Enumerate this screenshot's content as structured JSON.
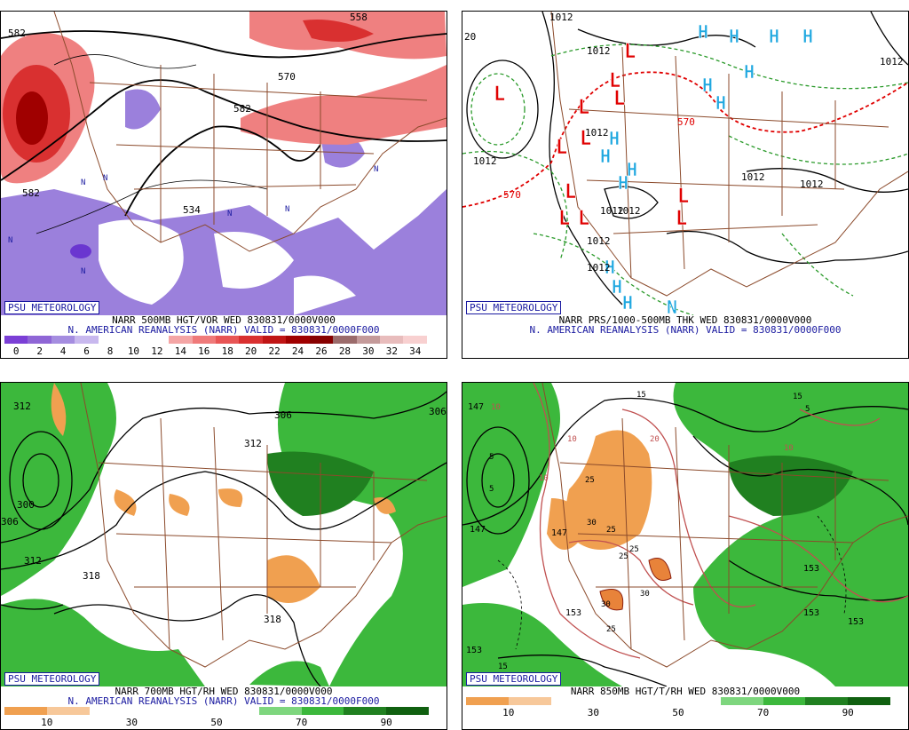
{
  "panels": [
    {
      "id": "p1",
      "badge": "PSU METEOROLOGY",
      "title": "NARR 500MB HGT/VOR WED 830831/0000V000",
      "subtitle": "N. AMERICAN REANALYSIS (NARR) VALID = 830831/0000F000",
      "labels": [
        "582",
        "570",
        "582",
        "582",
        "558",
        "534"
      ],
      "colorbar": {
        "colors": [
          "#7b3fd6",
          "#8f66d6",
          "#a58de0",
          "#c8b8ee",
          "#ffffff",
          "#ffffff",
          "#ffffff",
          "#f4a5a5",
          "#ef7a7a",
          "#e85555",
          "#d93030",
          "#c01515",
          "#a00000",
          "#870000",
          "#9b6b6b",
          "#c49a9a",
          "#e8bcbc",
          "#f8d0d0"
        ],
        "ticks": [
          "0",
          "2",
          "4",
          "6",
          "8",
          "10",
          "12",
          "14",
          "16",
          "18",
          "20",
          "22",
          "24",
          "26",
          "28",
          "30",
          "32",
          "34"
        ]
      }
    },
    {
      "id": "p2",
      "badge": "PSU METEOROLOGY",
      "title": "NARR PRS/1000-500MB THK WED 830831/0000V000",
      "subtitle": "N. AMERICAN REANALYSIS (NARR) VALID = 830831/0000F000",
      "labels": [
        "1012",
        "1012",
        "1012",
        "1012",
        "1012",
        "1012",
        "1012",
        "1012",
        "1012",
        "1012",
        "570",
        "570",
        "20",
        "1012"
      ]
    },
    {
      "id": "p3",
      "badge": "PSU METEOROLOGY",
      "title": "NARR 700MB HGT/RH WED 830831/0000V000",
      "subtitle": "N. AMERICAN REANALYSIS (NARR) VALID = 830831/0000F000",
      "labels": [
        "312",
        "306",
        "312",
        "312",
        "300",
        "318",
        "318",
        "306",
        "306"
      ],
      "colorbar": {
        "colors": [
          "#f0a050",
          "#f7c89a",
          "#ffffff",
          "#ffffff",
          "#ffffff",
          "#ffffff",
          "#7ed67e",
          "#3cb83c",
          "#208020",
          "#106010"
        ],
        "ticks": [
          "10",
          "30",
          "50",
          "70",
          "90"
        ]
      }
    },
    {
      "id": "p4",
      "badge": "PSU METEOROLOGY",
      "title": "NARR 850MB HGT/T/RH WED 830831/0000V000",
      "subtitle": "",
      "labels": [
        "147",
        "147",
        "147",
        "153",
        "153",
        "153",
        "153",
        "153",
        "10",
        "10",
        "10",
        "10",
        "20",
        "15",
        "15",
        "15",
        "5",
        "5",
        "5",
        "25",
        "25",
        "25",
        "25",
        "25",
        "30",
        "30",
        "30"
      ],
      "colorbar": {
        "colors": [
          "#f0a050",
          "#f7c89a",
          "#ffffff",
          "#ffffff",
          "#ffffff",
          "#ffffff",
          "#7ed67e",
          "#3cb83c",
          "#208020",
          "#106010"
        ],
        "ticks": [
          "10",
          "30",
          "50",
          "70",
          "90"
        ]
      }
    }
  ],
  "colors": {
    "border": "#8b4a2b",
    "contour": "#000000",
    "trough": "#1a1aa0",
    "low": "#e00000",
    "high": "#20a8e0"
  }
}
